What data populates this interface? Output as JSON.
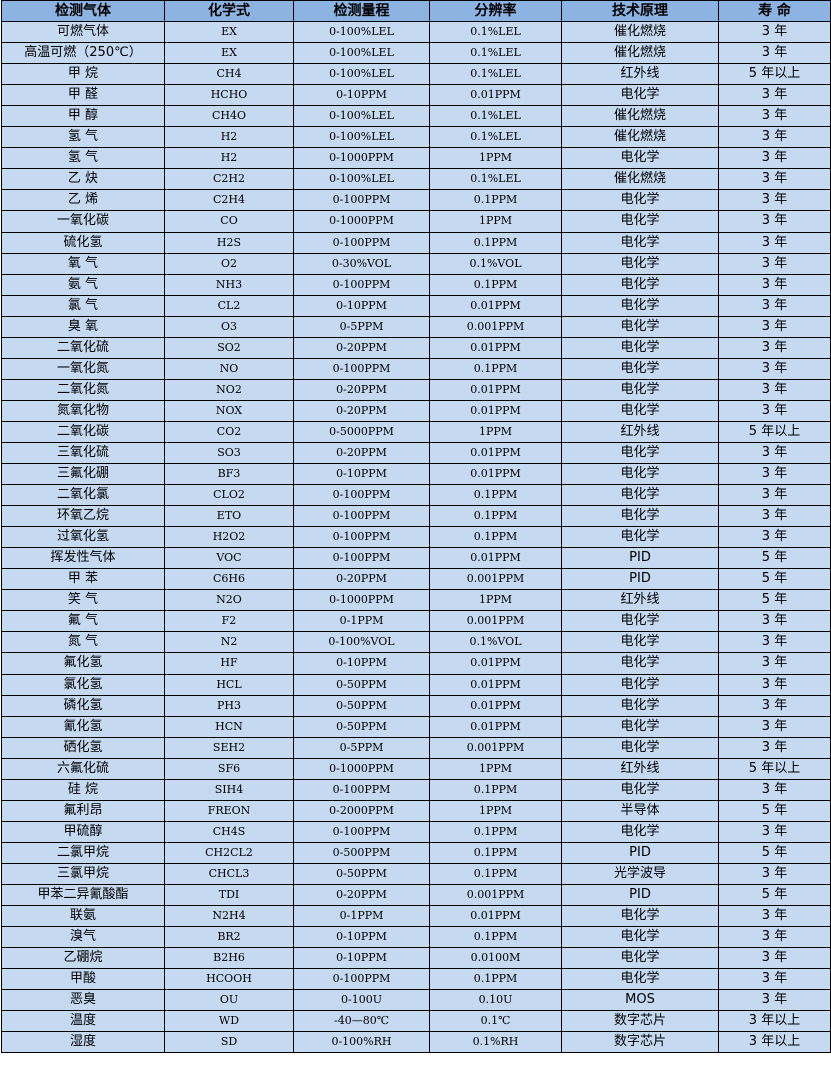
{
  "colors": {
    "header_bg": "#8db3e2",
    "row_bg": "#c5d9f1",
    "border": "#000000"
  },
  "headers": [
    "检测气体",
    "化学式",
    "检测量程",
    "分辨率",
    "技术原理",
    "寿 命"
  ],
  "rows": [
    [
      "可燃气体",
      "EX",
      "0-100%LEL",
      "0.1%LEL",
      "催化燃烧",
      "3 年"
    ],
    [
      "高温可燃（250℃）",
      "EX",
      "0-100%LEL",
      "0.1%LEL",
      "催化燃烧",
      "3 年"
    ],
    [
      "甲 烷",
      "CH4",
      "0-100%LEL",
      "0.1%LEL",
      "红外线",
      "5 年以上"
    ],
    [
      "甲 醛",
      "HCHO",
      "0-10PPM",
      "0.01PPM",
      "电化学",
      "3 年"
    ],
    [
      "甲 醇",
      "CH4O",
      "0-100%LEL",
      "0.1%LEL",
      "催化燃烧",
      "3 年"
    ],
    [
      "氢 气",
      "H2",
      "0-100%LEL",
      "0.1%LEL",
      "催化燃烧",
      "3 年"
    ],
    [
      "氢 气",
      "H2",
      "0-1000PPM",
      "1PPM",
      "电化学",
      "3 年"
    ],
    [
      "乙 炔",
      "C2H2",
      "0-100%LEL",
      "0.1%LEL",
      "催化燃烧",
      "3 年"
    ],
    [
      "乙 烯",
      "C2H4",
      "0-100PPM",
      "0.1PPM",
      "电化学",
      "3 年"
    ],
    [
      "一氧化碳",
      "CO",
      "0-1000PPM",
      "1PPM",
      "电化学",
      "3 年"
    ],
    [
      "硫化氢",
      "H2S",
      "0-100PPM",
      "0.1PPM",
      "电化学",
      "3 年"
    ],
    [
      "氧 气",
      "O2",
      "0-30%VOL",
      "0.1%VOL",
      "电化学",
      "3 年"
    ],
    [
      "氨 气",
      "NH3",
      "0-100PPM",
      "0.1PPM",
      "电化学",
      "3 年"
    ],
    [
      "氯 气",
      "CL2",
      "0-10PPM",
      "0.01PPM",
      "电化学",
      "3 年"
    ],
    [
      "臭 氧",
      "O3",
      "0-5PPM",
      "0.001PPM",
      "电化学",
      "3 年"
    ],
    [
      "二氧化硫",
      "SO2",
      "0-20PPM",
      "0.01PPM",
      "电化学",
      "3 年"
    ],
    [
      "一氧化氮",
      "NO",
      "0-100PPM",
      "0.1PPM",
      "电化学",
      "3 年"
    ],
    [
      "二氧化氮",
      "NO2",
      "0-20PPM",
      "0.01PPM",
      "电化学",
      "3 年"
    ],
    [
      "氮氧化物",
      "NOX",
      "0-20PPM",
      "0.01PPM",
      "电化学",
      "3 年"
    ],
    [
      "二氧化碳",
      "CO2",
      "0-5000PPM",
      "1PPM",
      "红外线",
      "5 年以上"
    ],
    [
      "三氧化硫",
      "SO3",
      "0-20PPM",
      "0.01PPM",
      "电化学",
      "3 年"
    ],
    [
      "三氟化硼",
      "BF3",
      "0-10PPM",
      "0.01PPM",
      "电化学",
      "3 年"
    ],
    [
      "二氧化氯",
      "CLO2",
      "0-100PPM",
      "0.1PPM",
      "电化学",
      "3 年"
    ],
    [
      "环氧乙烷",
      "ETO",
      "0-100PPM",
      "0.1PPM",
      "电化学",
      "3 年"
    ],
    [
      "过氧化氢",
      "H2O2",
      "0-100PPM",
      "0.1PPM",
      "电化学",
      "3 年"
    ],
    [
      "挥发性气体",
      "VOC",
      "0-100PPM",
      "0.01PPM",
      "PID",
      "5 年"
    ],
    [
      "甲 苯",
      "C6H6",
      "0-20PPM",
      "0.001PPM",
      "PID",
      "5 年"
    ],
    [
      "笑 气",
      "N2O",
      "0-1000PPM",
      "1PPM",
      "红外线",
      "5 年"
    ],
    [
      "氟 气",
      "F2",
      "0-1PPM",
      "0.001PPM",
      "电化学",
      "3 年"
    ],
    [
      "氮 气",
      "N2",
      "0-100%VOL",
      "0.1%VOL",
      "电化学",
      "3 年"
    ],
    [
      "氟化氢",
      "HF",
      "0-10PPM",
      "0.01PPM",
      "电化学",
      "3 年"
    ],
    [
      "氯化氢",
      "HCL",
      "0-50PPM",
      "0.01PPM",
      "电化学",
      "3 年"
    ],
    [
      "磷化氢",
      "PH3",
      "0-50PPM",
      "0.01PPM",
      "电化学",
      "3 年"
    ],
    [
      "氰化氢",
      "HCN",
      "0-50PPM",
      "0.01PPM",
      "电化学",
      "3 年"
    ],
    [
      "硒化氢",
      "SEH2",
      "0-5PPM",
      "0.001PPM",
      "电化学",
      "3 年"
    ],
    [
      "六氟化硫",
      "SF6",
      "0-1000PPM",
      "1PPM",
      "红外线",
      "5 年以上"
    ],
    [
      "硅 烷",
      "SIH4",
      "0-100PPM",
      "0.1PPM",
      "电化学",
      "3 年"
    ],
    [
      "氟利昂",
      "FREON",
      "0-2000PPM",
      "1PPM",
      "半导体",
      "5 年"
    ],
    [
      "甲硫醇",
      "CH4S",
      "0-100PPM",
      "0.1PPM",
      "电化学",
      "3 年"
    ],
    [
      "二氯甲烷",
      "CH2CL2",
      "0-500PPM",
      "0.1PPM",
      "PID",
      "5 年"
    ],
    [
      "三氯甲烷",
      "CHCL3",
      "0-50PPM",
      "0.1PPM",
      "光学波导",
      "3 年"
    ],
    [
      "甲苯二异氰酸酯",
      "TDI",
      "0-20PPM",
      "0.001PPM",
      "PID",
      "5 年"
    ],
    [
      "联氨",
      "N2H4",
      "0-1PPM",
      "0.01PPM",
      "电化学",
      "3 年"
    ],
    [
      "溴气",
      "BR2",
      "0-10PPM",
      "0.1PPM",
      "电化学",
      "3 年"
    ],
    [
      "乙硼烷",
      "B2H6",
      "0-10PPM",
      "0.0100M",
      "电化学",
      "3 年"
    ],
    [
      "甲酸",
      "HCOOH",
      "0-100PPM",
      "0.1PPM",
      "电化学",
      "3 年"
    ],
    [
      "恶臭",
      "OU",
      "0-100U",
      "0.10U",
      "MOS",
      "3 年"
    ],
    [
      "温度",
      "WD",
      "-40—80℃",
      "0.1℃",
      "数字芯片",
      "3 年以上"
    ],
    [
      "湿度",
      "SD",
      "0-100%RH",
      "0.1%RH",
      "数字芯片",
      "3 年以上"
    ]
  ]
}
